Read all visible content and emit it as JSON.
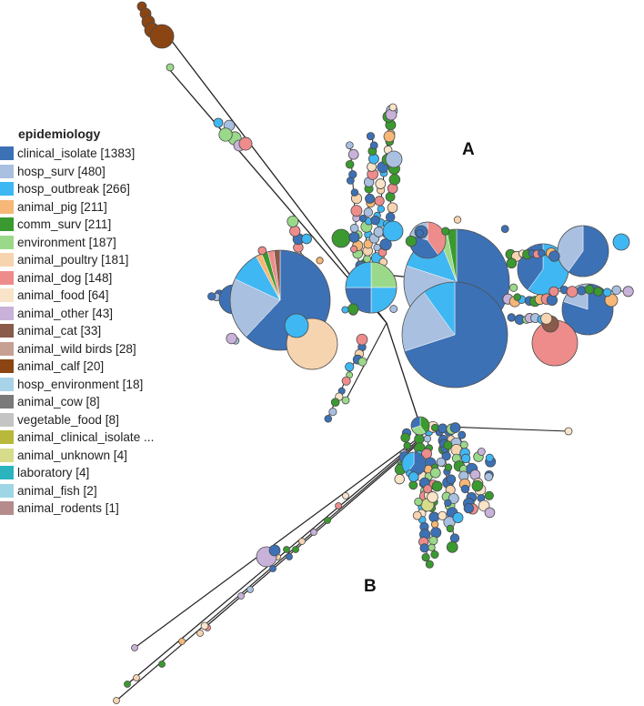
{
  "legend": {
    "title": "epidemiology",
    "items": [
      {
        "label": "clinical_isolate [1383]",
        "color": "#3c71b6"
      },
      {
        "label": "hosp_surv [480]",
        "color": "#a9c0e0"
      },
      {
        "label": "hosp_outbreak [266]",
        "color": "#3fb7f2"
      },
      {
        "label": "animal_pig [211]",
        "color": "#f6b777"
      },
      {
        "label": "comm_surv [211]",
        "color": "#3a9a30"
      },
      {
        "label": "environment [187]",
        "color": "#9bd98a"
      },
      {
        "label": "animal_poultry [181]",
        "color": "#f7d4b0"
      },
      {
        "label": "animal_dog [148]",
        "color": "#ee8c8c"
      },
      {
        "label": "animal_food [64]",
        "color": "#f9e4c9"
      },
      {
        "label": "animal_other [43]",
        "color": "#c8b2d9"
      },
      {
        "label": "animal_cat [33]",
        "color": "#8a5a4a"
      },
      {
        "label": "animal_wild birds [28]",
        "color": "#c7a094"
      },
      {
        "label": "animal_calf [20]",
        "color": "#8b4513"
      },
      {
        "label": "hosp_environment [18]",
        "color": "#a9d3e8"
      },
      {
        "label": "animal_cow [8]",
        "color": "#7a7a7a"
      },
      {
        "label": "vegetable_food [8]",
        "color": "#c4c4c4"
      },
      {
        "label": "animal_clinical_isolate ...",
        "color": "#b8b83a"
      },
      {
        "label": "animal_unknown [4]",
        "color": "#d6dc8a"
      },
      {
        "label": "laboratory [4]",
        "color": "#2bb3c0"
      },
      {
        "label": "animal_fish [2]",
        "color": "#9fd6e5"
      },
      {
        "label": "animal_rodents [1]",
        "color": "#b58b8b"
      }
    ]
  },
  "clusters": {
    "a": "A",
    "b": "B"
  },
  "colors": {
    "edge": "#222222",
    "node_stroke": "#4a4a4a"
  }
}
